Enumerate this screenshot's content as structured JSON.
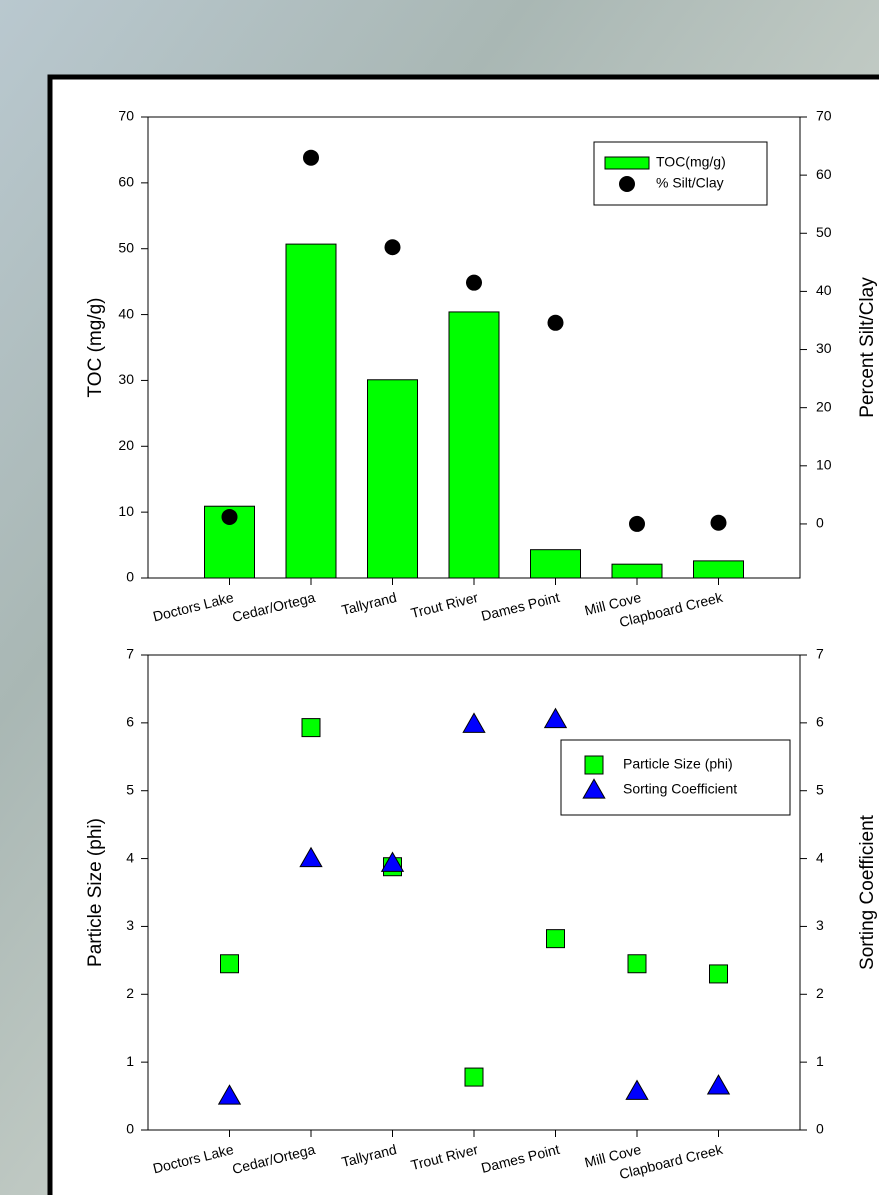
{
  "chart_data": [
    {
      "type": "bar",
      "categories": [
        "Doctors Lake",
        "Cedar/Ortega",
        "Tallyrand",
        "Trout River",
        "Dames Point",
        "Mill Cove",
        "Clapboard Creek"
      ],
      "y_label": "TOC (mg/g)",
      "y2_label": "Percent Silt/Clay",
      "series": [
        {
          "name": "TOC(mg/g)",
          "color": "#00ff00",
          "marker": "bar",
          "values": [
            10.9,
            50.7,
            30.1,
            40.4,
            4.3,
            2.1,
            2.6
          ]
        },
        {
          "name": "% Silt/Clay",
          "color": "#000000",
          "marker": "circle",
          "axis": "y2",
          "values": [
            1.2,
            63,
            47.6,
            41.5,
            34.6,
            0,
            0.2
          ]
        }
      ],
      "ylim": [
        0,
        70
      ],
      "yticks": [
        0,
        10,
        20,
        30,
        40,
        50,
        60,
        70
      ],
      "y2lim": [
        -9.3,
        70
      ],
      "y2ticks": [
        0,
        10,
        20,
        30,
        40,
        50,
        60,
        70
      ],
      "legend": "upper right"
    },
    {
      "type": "scatter",
      "categories": [
        "Doctors Lake",
        "Cedar/Ortega",
        "Tallyrand",
        "Trout River",
        "Dames Point",
        "Mill Cove",
        "Clapboard Creek"
      ],
      "y_label": "Particle Size (phi)",
      "y2_label": "Sorting Coefficient",
      "series": [
        {
          "name": "Particle Size (phi)",
          "color": "#00ff00",
          "marker": "square",
          "values": [
            2.45,
            5.93,
            3.88,
            0.78,
            2.82,
            2.45,
            2.3
          ]
        },
        {
          "name": "Sorting Coefficient",
          "color": "#0000ff",
          "marker": "triangle",
          "axis": "y2",
          "values": [
            0.5,
            4.0,
            3.93,
            5.98,
            6.05,
            0.57,
            0.65
          ]
        }
      ],
      "ylim": [
        0,
        7
      ],
      "yticks": [
        0,
        1,
        2,
        3,
        4,
        5,
        6,
        7
      ],
      "y2lim": [
        0,
        7
      ],
      "y2ticks": [
        0,
        1,
        2,
        3,
        4,
        5,
        6,
        7
      ],
      "legend": "upper right"
    }
  ]
}
